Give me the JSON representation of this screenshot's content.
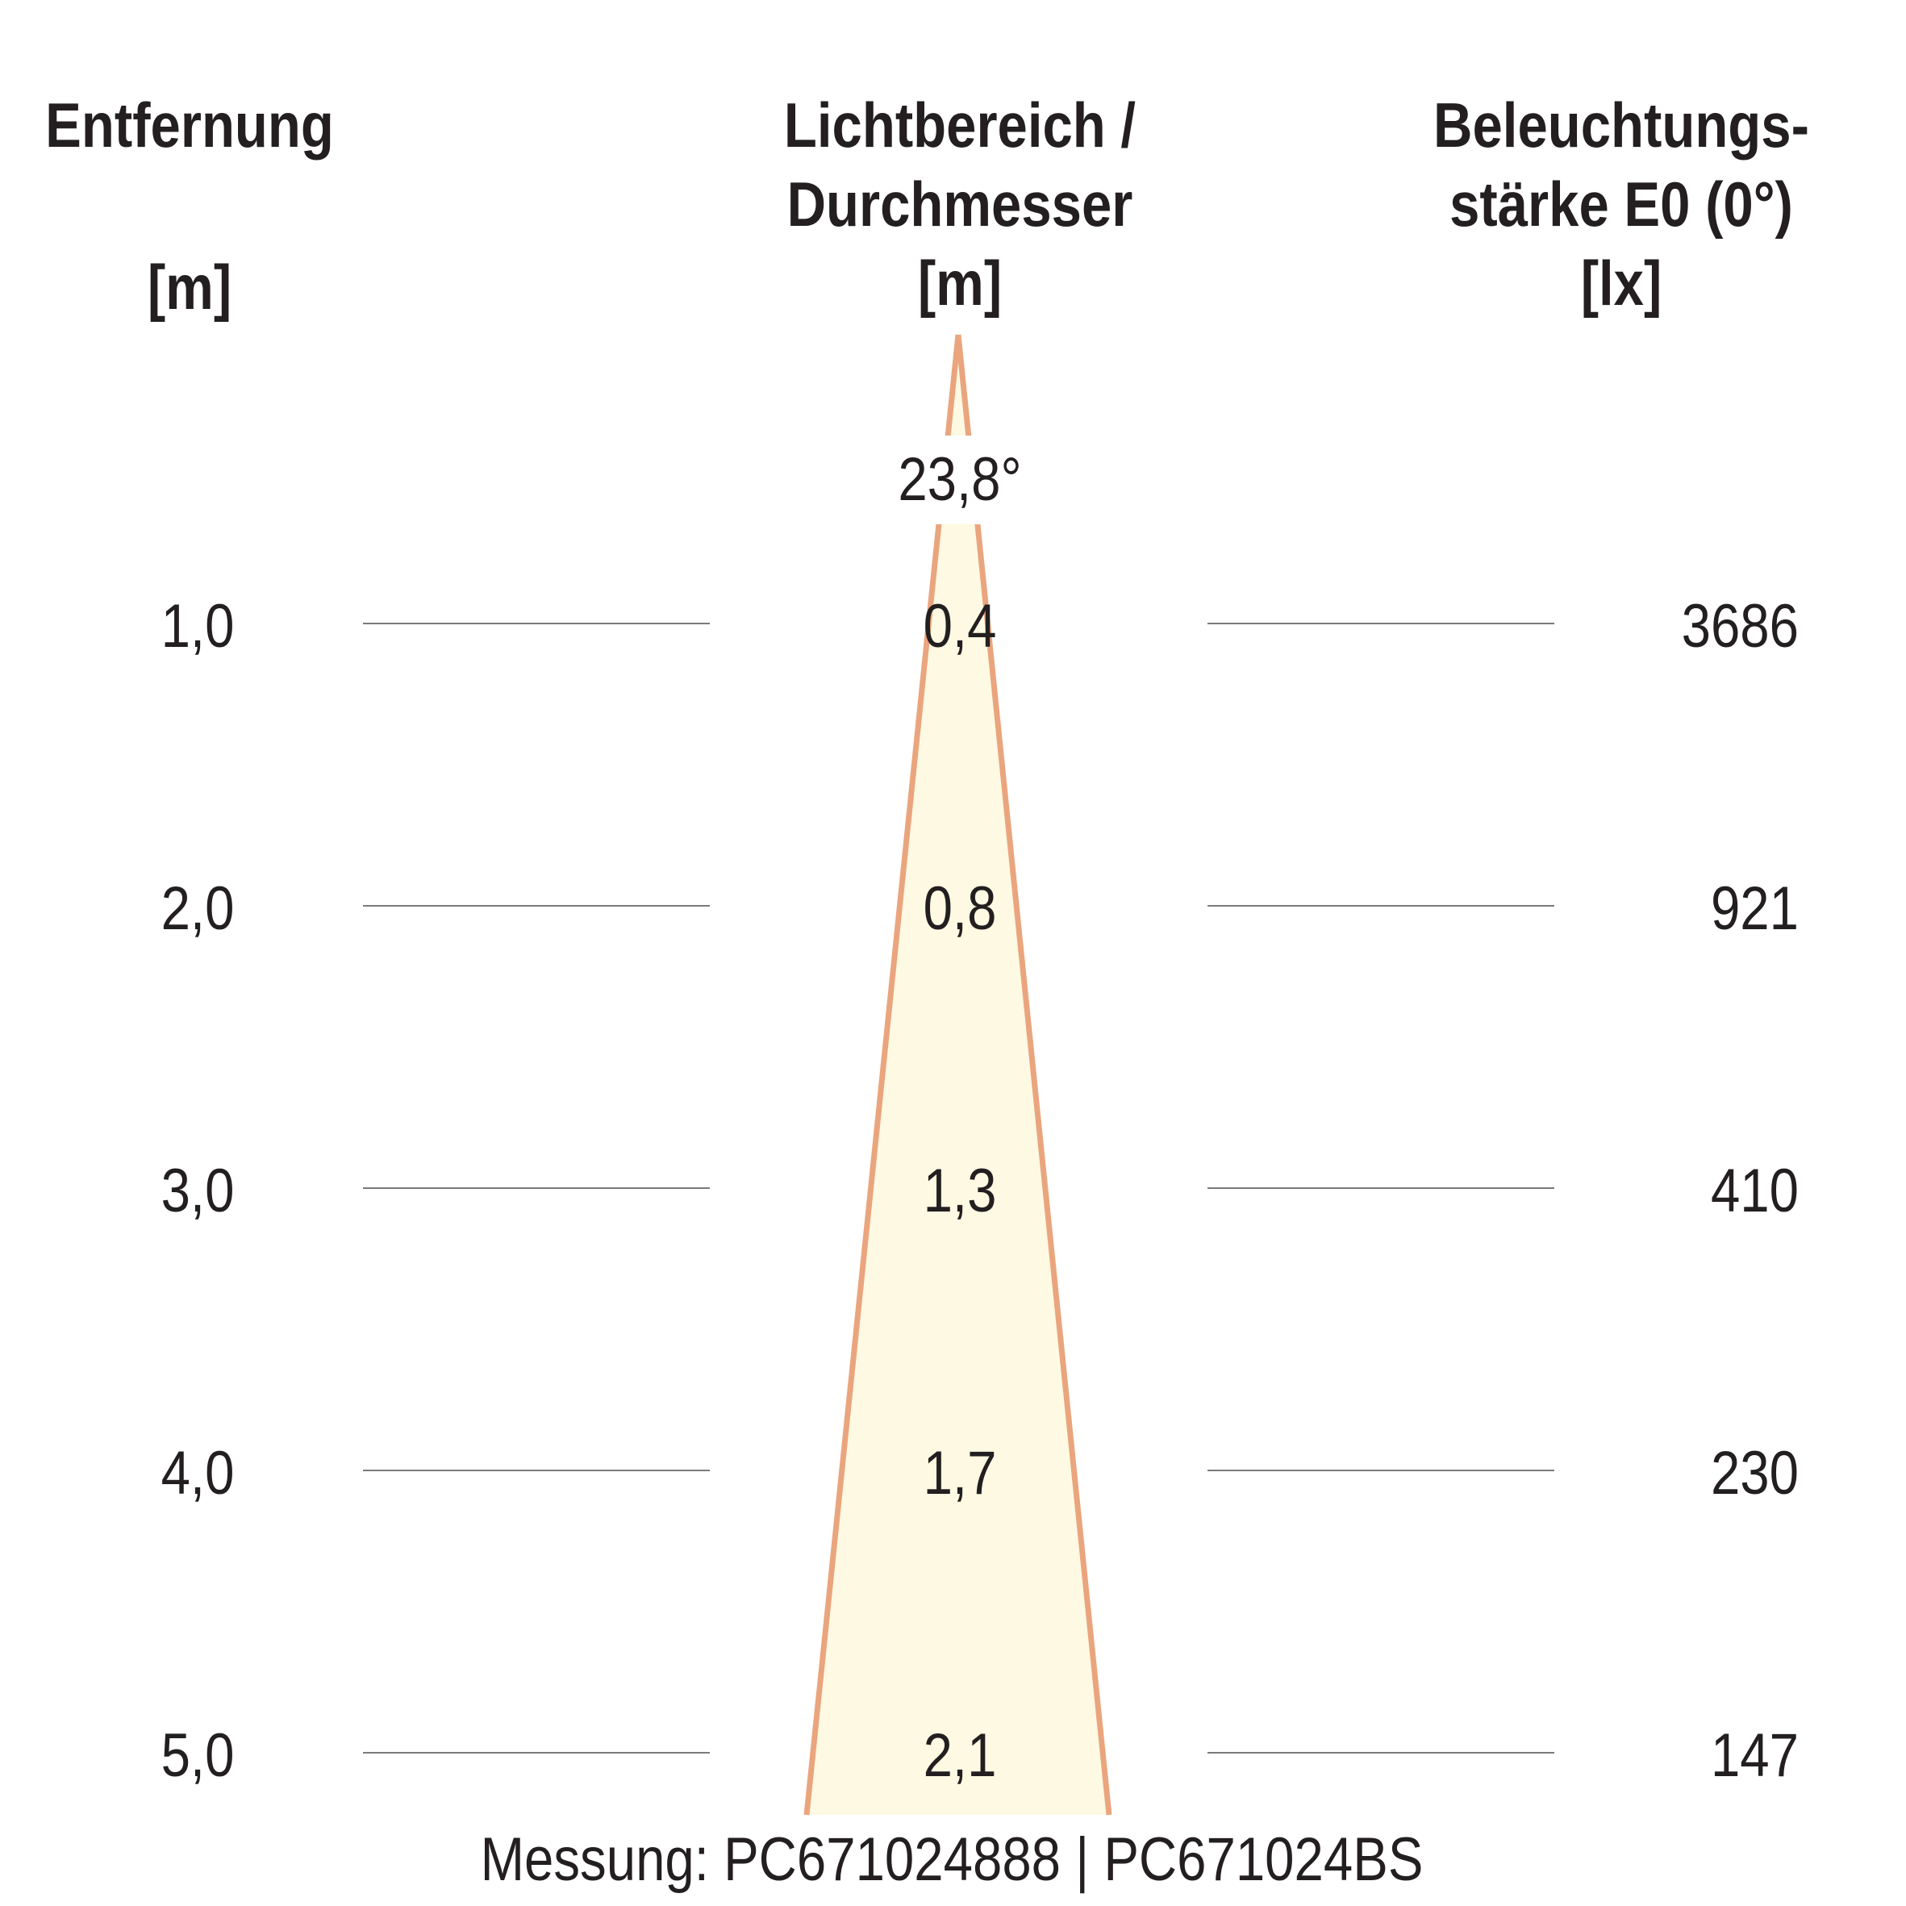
{
  "headers": {
    "distance": {
      "lines": [
        "Entfernung"
      ],
      "unit": "[m]"
    },
    "diameter": {
      "lines": [
        "Lichtbereich /",
        "Durchmesser"
      ],
      "unit": "[m]"
    },
    "illuminance": {
      "lines": [
        "Beleuchtungs-",
        "stärke E0 (0°)"
      ],
      "unit": "[lx]"
    }
  },
  "beam_angle": "23,8°",
  "rows": [
    {
      "distance": "1,0",
      "diameter": "0,4",
      "illuminance": "3686"
    },
    {
      "distance": "2,0",
      "diameter": "0,8",
      "illuminance": "921"
    },
    {
      "distance": "3,0",
      "diameter": "1,3",
      "illuminance": "410"
    },
    {
      "distance": "4,0",
      "diameter": "1,7",
      "illuminance": "230"
    },
    {
      "distance": "5,0",
      "diameter": "2,1",
      "illuminance": "147"
    }
  ],
  "footer": "Messung: PC671024888 | PC671024BS",
  "colors": {
    "cone_fill": "#fdf9e2",
    "cone_stroke": "#eaa57e",
    "rule": "#7a7a7a",
    "text": "#231f20"
  }
}
